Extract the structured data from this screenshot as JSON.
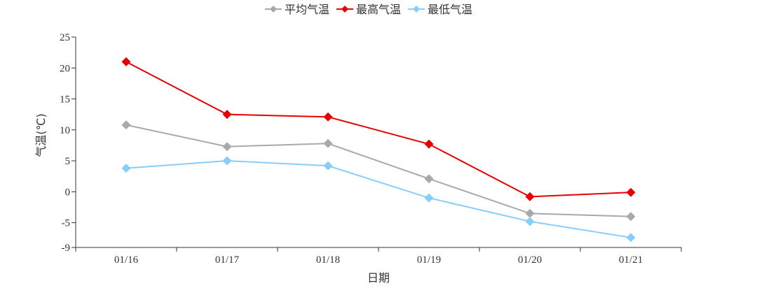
{
  "chart_data": {
    "type": "line",
    "categories": [
      "01/16",
      "01/17",
      "01/18",
      "01/19",
      "01/20",
      "01/21"
    ],
    "series": [
      {
        "name": "平均气温",
        "color": "#a9a9a9",
        "marker": "diamond",
        "values": [
          10.8,
          7.3,
          7.8,
          2.1,
          -3.5,
          -4.0
        ]
      },
      {
        "name": "最高气温",
        "color": "#e60000",
        "marker": "diamond",
        "values": [
          21.0,
          12.5,
          12.1,
          7.7,
          -0.8,
          -0.1
        ]
      },
      {
        "name": "最低气温",
        "color": "#87cefa",
        "marker": "diamond",
        "values": [
          3.8,
          5.0,
          4.2,
          -1.0,
          -4.8,
          -7.4
        ]
      }
    ],
    "xlabel": "日期",
    "ylabel": "气温(℃)",
    "ylim": [
      -9,
      25
    ],
    "yticks": [
      "-9",
      "-5",
      "0",
      "5",
      "10",
      "15",
      "20",
      "25"
    ],
    "grid": false,
    "legend_position": "top-center"
  }
}
